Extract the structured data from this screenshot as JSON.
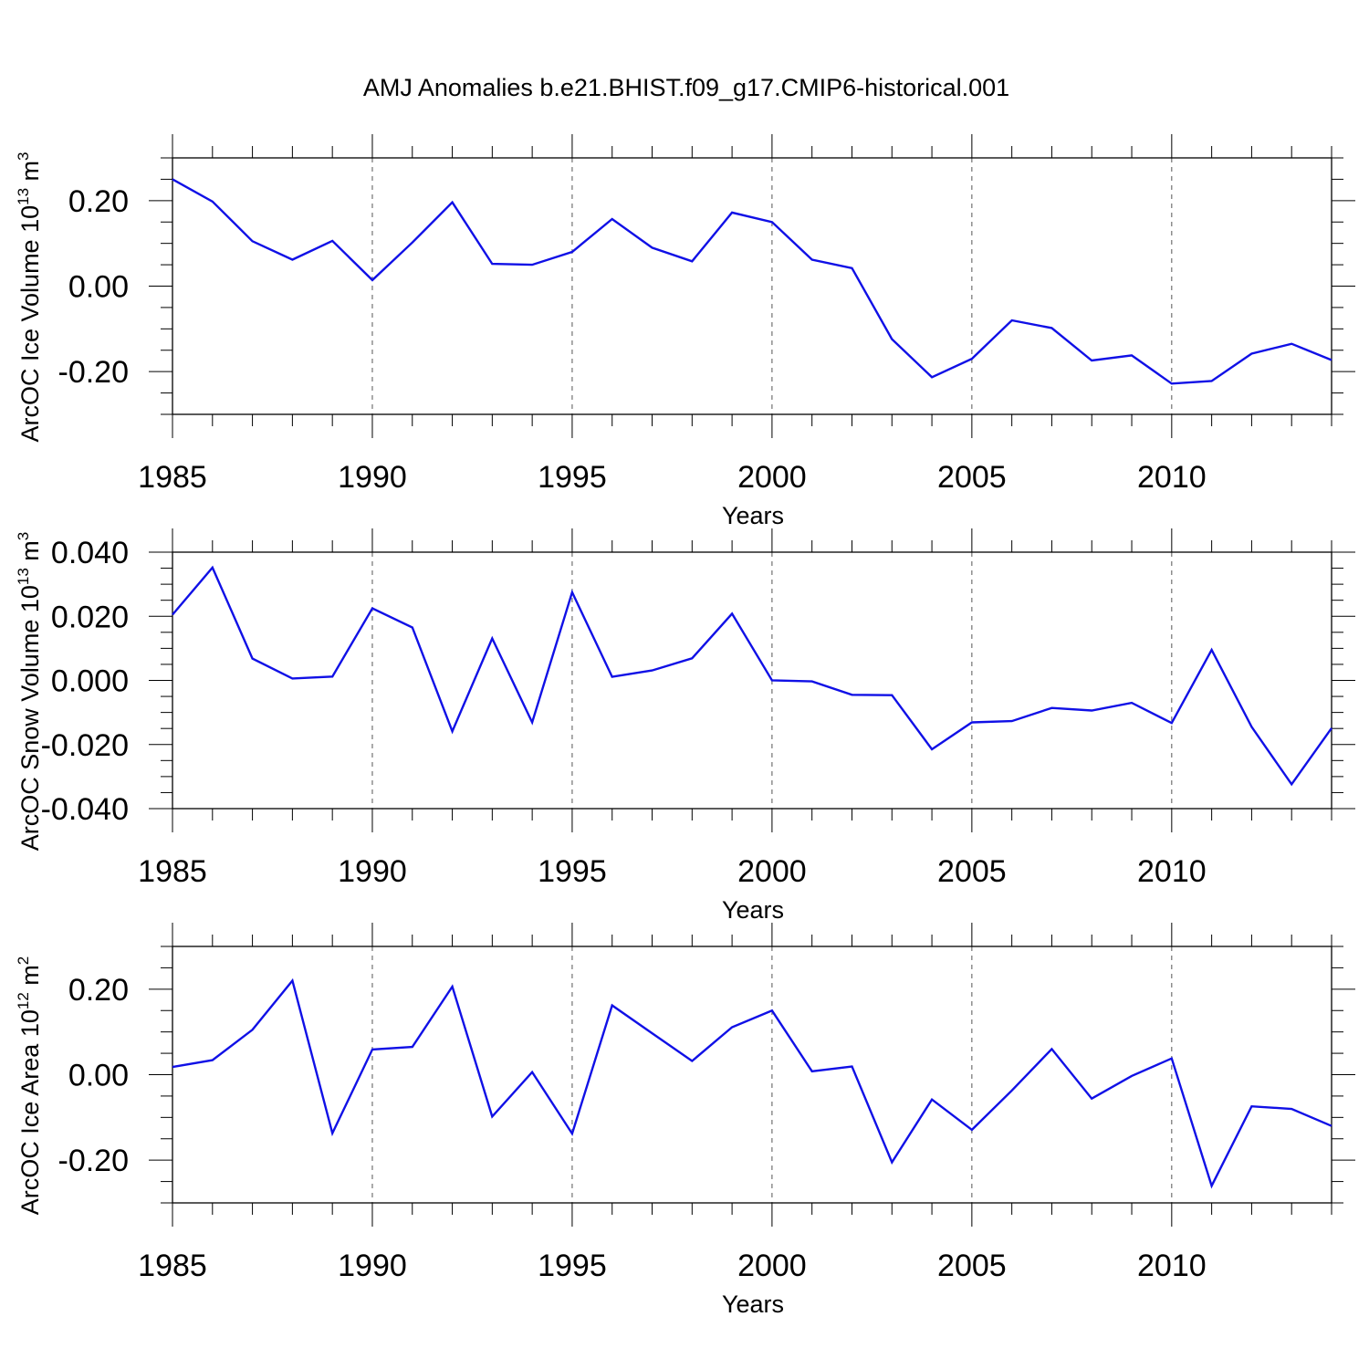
{
  "figure": {
    "title": "AMJ Anomalies b.e21.BHIST.f09_g17.CMIP6-historical.001"
  },
  "colors": {
    "series": "#1010e6",
    "axes": "#000000",
    "grid": "#555555"
  },
  "chart_data": [
    {
      "type": "line",
      "name": "ice-volume",
      "title": "AMJ Anomalies b.e21.BHIST.f09_g17.CMIP6-historical.001",
      "xlabel": "Years",
      "ylabel": "ArcOC Ice Volume 10",
      "ylabel_exp": "13",
      "ylabel_unit": "m",
      "ylabel_unit_exp": "3",
      "xlim": [
        1985,
        2014
      ],
      "ylim": [
        -0.3,
        0.3
      ],
      "yticks": [
        -0.2,
        0.0,
        0.2
      ],
      "ytick_labels": [
        "-0.20",
        "0.00",
        "0.20"
      ],
      "yminor": [
        -0.3,
        -0.25,
        -0.15,
        -0.1,
        -0.05,
        0.05,
        0.1,
        0.15,
        0.25,
        0.3
      ],
      "xticks": [
        1985,
        1990,
        1995,
        2000,
        2005,
        2010
      ],
      "xtick_labels": [
        "1985",
        "1990",
        "1995",
        "2000",
        "2005",
        "2010"
      ],
      "grid_x": [
        1990,
        1995,
        2000,
        2005,
        2010
      ],
      "x": [
        1985,
        1986,
        1987,
        1988,
        1989,
        1990,
        1991,
        1992,
        1993,
        1994,
        1995,
        1996,
        1997,
        1998,
        1999,
        2000,
        2001,
        2002,
        2003,
        2004,
        2005,
        2006,
        2007,
        2008,
        2009,
        2010,
        2011,
        2012,
        2013,
        2014
      ],
      "values": [
        0.25,
        0.198,
        0.105,
        0.062,
        0.106,
        0.014,
        0.102,
        0.196,
        0.052,
        0.05,
        0.08,
        0.157,
        0.09,
        0.058,
        0.172,
        0.15,
        0.062,
        0.042,
        -0.124,
        -0.213,
        -0.17,
        -0.08,
        -0.098,
        -0.174,
        -0.162,
        -0.228,
        -0.222,
        -0.158,
        -0.135,
        -0.173
      ]
    },
    {
      "type": "line",
      "name": "snow-volume",
      "xlabel": "Years",
      "ylabel": "ArcOC Snow Volume 10",
      "ylabel_exp": "13",
      "ylabel_unit": "m",
      "ylabel_unit_exp": "3",
      "xlim": [
        1985,
        2014
      ],
      "ylim": [
        -0.04,
        0.04
      ],
      "yticks": [
        -0.04,
        -0.02,
        0.0,
        0.02,
        0.04
      ],
      "ytick_labels": [
        "-0.040",
        "-0.020",
        "0.000",
        "0.020",
        "0.040"
      ],
      "yminor": [
        -0.035,
        -0.03,
        -0.025,
        -0.015,
        -0.01,
        -0.005,
        0.005,
        0.01,
        0.015,
        0.025,
        0.03,
        0.035,
        0.045
      ],
      "xticks": [
        1985,
        1990,
        1995,
        2000,
        2005,
        2010
      ],
      "xtick_labels": [
        "1985",
        "1990",
        "1995",
        "2000",
        "2005",
        "2010"
      ],
      "grid_x": [
        1990,
        1995,
        2000,
        2005,
        2010
      ],
      "x": [
        1985,
        1986,
        1987,
        1988,
        1989,
        1990,
        1991,
        1992,
        1993,
        1994,
        1995,
        1996,
        1997,
        1998,
        1999,
        2000,
        2001,
        2002,
        2003,
        2004,
        2005,
        2006,
        2007,
        2008,
        2009,
        2010,
        2011,
        2012,
        2013,
        2014
      ],
      "values": [
        0.0205,
        0.0352,
        0.0068,
        0.0006,
        0.0012,
        0.0225,
        0.0165,
        -0.0159,
        0.0131,
        -0.0131,
        0.0275,
        0.0011,
        0.0031,
        0.0069,
        0.0208,
        0.0,
        -0.0003,
        -0.0045,
        -0.0046,
        -0.0215,
        -0.0131,
        -0.0127,
        -0.0086,
        -0.0094,
        -0.007,
        -0.0133,
        0.0095,
        -0.0145,
        -0.0324,
        -0.0149
      ]
    },
    {
      "type": "line",
      "name": "ice-area",
      "xlabel": "Years",
      "ylabel": "ArcOC Ice Area 10",
      "ylabel_exp": "12",
      "ylabel_unit": "m",
      "ylabel_unit_exp": "2",
      "xlim": [
        1985,
        2014
      ],
      "ylim": [
        -0.3,
        0.3
      ],
      "yticks": [
        -0.2,
        0.0,
        0.2
      ],
      "ytick_labels": [
        "-0.20",
        "0.00",
        "0.20"
      ],
      "yminor": [
        -0.3,
        -0.25,
        -0.15,
        -0.1,
        -0.05,
        0.05,
        0.1,
        0.15,
        0.25,
        0.3
      ],
      "xticks": [
        1985,
        1990,
        1995,
        2000,
        2005,
        2010
      ],
      "xtick_labels": [
        "1985",
        "1990",
        "1995",
        "2000",
        "2005",
        "2010"
      ],
      "grid_x": [
        1990,
        1995,
        2000,
        2005,
        2010
      ],
      "x": [
        1985,
        1986,
        1987,
        1988,
        1989,
        1990,
        1991,
        1992,
        1993,
        1994,
        1995,
        1996,
        1997,
        1998,
        1999,
        2000,
        2001,
        2002,
        2003,
        2004,
        2005,
        2006,
        2007,
        2008,
        2009,
        2010,
        2011,
        2012,
        2013,
        2014
      ],
      "values": [
        0.018,
        0.034,
        0.105,
        0.22,
        -0.137,
        0.059,
        0.065,
        0.206,
        -0.098,
        0.006,
        -0.138,
        0.162,
        0.097,
        0.032,
        0.111,
        0.15,
        0.008,
        0.019,
        -0.205,
        -0.058,
        -0.129,
        -0.037,
        0.06,
        -0.056,
        -0.003,
        0.038,
        -0.26,
        -0.074,
        -0.08,
        -0.12
      ]
    }
  ]
}
